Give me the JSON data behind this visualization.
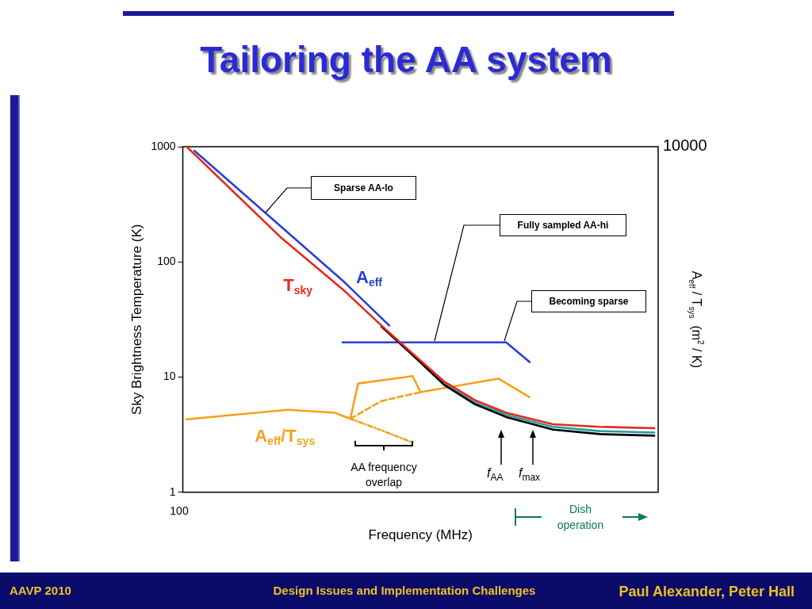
{
  "chart_data": {
    "type": "line",
    "title": "Tailoring the AA system",
    "xlabel": "Frequency (MHz)",
    "ylabel": "Sky Brightness Temperature (K)",
    "y2label": "A$_{eff}$ / T$_{sys}$  (m$^{2}$ / K)",
    "log": "y",
    "grid": false,
    "legend": false,
    "marker": "none",
    "categories": [
      null,
      null,
      null,
      null,
      null,
      null,
      null,
      null,
      null,
      null,
      null,
      null,
      null,
      null,
      null,
      null,
      null,
      null,
      null,
      null,
      null,
      null,
      null,
      null,
      null,
      null,
      null,
      null,
      null,
      null,
      null,
      null,
      null,
      null,
      null,
      null,
      null,
      null,
      null,
      null,
      null,
      null,
      null,
      null,
      null,
      null,
      null,
      null,
      null,
      null,
      null,
      null,
      null,
      null,
      null,
      null,
      null,
      null,
      null,
      null,
      null
    ],
    "ylim": [
      1,
      1000
    ],
    "yticks": [
      1,
      10,
      100,
      1000
    ],
    "series": [
      {
        "name": "T$_{sky}$",
        "color": "#e8281e",
        "values": [
          1000,
          null,
          null,
          null,
          null,
          null,
          null,
          null,
          null,
          null,
          null,
          null,
          165,
          null,
          null,
          null,
          null,
          null,
          null,
          null,
          58,
          null,
          null,
          null,
          null,
          28,
          null,
          null,
          null,
          16,
          null,
          null,
          null,
          9.2,
          null,
          null,
          null,
          6.3,
          null,
          null,
          null,
          4.9,
          null,
          null,
          null,
          null,
          null,
          3.9,
          null,
          null,
          null,
          null,
          null,
          3.7,
          null,
          null,
          null,
          null,
          null,
          null,
          3.6
        ]
      },
      {
        "color": "#000000",
        "values": [
          null,
          null,
          null,
          null,
          null,
          null,
          null,
          null,
          null,
          null,
          null,
          null,
          null,
          null,
          null,
          null,
          null,
          null,
          null,
          null,
          null,
          null,
          null,
          null,
          null,
          27.5,
          null,
          null,
          null,
          15.5,
          null,
          null,
          null,
          8.6,
          null,
          null,
          null,
          5.8,
          null,
          null,
          null,
          4.5,
          null,
          null,
          null,
          null,
          null,
          3.5,
          null,
          null,
          null,
          null,
          null,
          3.2,
          null,
          null,
          null,
          null,
          null,
          null,
          3.1
        ]
      },
      {
        "color": "#20a0a0",
        "values": [
          null,
          null,
          null,
          null,
          null,
          null,
          null,
          null,
          null,
          null,
          null,
          null,
          null,
          null,
          null,
          null,
          null,
          null,
          null,
          null,
          null,
          null,
          null,
          null,
          null,
          27.5,
          null,
          null,
          null,
          15.6,
          null,
          null,
          null,
          8.8,
          null,
          null,
          null,
          6.0,
          null,
          null,
          null,
          4.7,
          null,
          null,
          null,
          null,
          null,
          3.7,
          null,
          null,
          null,
          null,
          null,
          3.4,
          null,
          null,
          null,
          null,
          null,
          null,
          3.3
        ]
      },
      {
        "name": "A$_{eff}$",
        "color": "#2b3fd0",
        "values": [
          null,
          921,
          null,
          null,
          null,
          null,
          null,
          null,
          null,
          null,
          null,
          null,
          null,
          null,
          null,
          null,
          null,
          null,
          null,
          null,
          69,
          null,
          null,
          null,
          null,
          null,
          28,
          null,
          null,
          null,
          null,
          null,
          null,
          null,
          null,
          null,
          null,
          null,
          null,
          null,
          null,
          null,
          null,
          null,
          null,
          null,
          null,
          null,
          null,
          null,
          null,
          null,
          null,
          null,
          null,
          null,
          null,
          null,
          null,
          null,
          null
        ]
      },
      {
        "color": "#2b3fd0",
        "values": [
          null,
          null,
          null,
          null,
          null,
          null,
          null,
          null,
          null,
          null,
          null,
          null,
          null,
          null,
          null,
          null,
          null,
          null,
          null,
          null,
          20,
          null,
          null,
          null,
          null,
          null,
          null,
          null,
          null,
          null,
          null,
          null,
          null,
          null,
          null,
          null,
          null,
          null,
          null,
          null,
          null,
          20,
          null,
          null,
          13.5,
          null,
          null,
          null,
          null,
          null,
          null,
          null,
          null,
          null,
          null,
          null,
          null,
          null,
          null,
          null,
          null
        ]
      },
      {
        "name": "A$_{eff}$/T$_{sys}$",
        "color": "#f5a01a",
        "values": [
          4.3,
          null,
          null,
          null,
          null,
          null,
          null,
          null,
          null,
          null,
          null,
          null,
          null,
          5.2,
          null,
          null,
          null,
          null,
          null,
          4.9,
          null,
          4.35,
          8.8,
          null,
          null,
          null,
          null,
          null,
          null,
          10.2,
          7.4,
          null,
          null,
          null,
          null,
          null,
          null,
          null,
          null,
          null,
          9.7,
          null,
          null,
          null,
          6.7,
          null,
          null,
          null,
          null,
          null,
          null,
          null,
          null,
          null,
          null,
          null,
          null,
          null,
          null,
          null,
          null
        ]
      },
      {
        "color": "#f5a01a",
        "line_style": "dashed",
        "values": [
          null,
          null,
          null,
          null,
          null,
          null,
          null,
          null,
          null,
          null,
          null,
          null,
          null,
          null,
          null,
          null,
          null,
          null,
          null,
          null,
          null,
          4.35,
          null,
          null,
          null,
          6.2,
          null,
          null,
          null,
          null,
          7.4,
          null,
          null,
          null,
          null,
          null,
          null,
          null,
          null,
          null,
          null,
          null,
          null,
          null,
          null,
          null,
          null,
          null,
          null,
          null,
          null,
          null,
          null,
          null,
          null,
          null,
          null,
          null,
          null,
          null,
          null
        ]
      },
      {
        "color": "#f5a01a",
        "line_style": "dotted",
        "values": [
          null,
          null,
          null,
          null,
          null,
          null,
          null,
          null,
          null,
          null,
          null,
          null,
          null,
          null,
          null,
          null,
          null,
          null,
          null,
          null,
          null,
          4.35,
          null,
          null,
          null,
          3.45,
          null,
          null,
          null,
          2.7,
          null,
          null,
          null,
          null,
          null,
          null,
          null,
          null,
          null,
          null,
          null,
          null,
          null,
          null,
          null,
          null,
          null,
          null,
          null,
          null,
          null,
          null,
          null,
          null,
          null,
          null,
          null,
          null,
          null,
          null,
          null
        ]
      }
    ],
    "annotations": [
      "Sparse AA-lo",
      "Fully sampled AA-hi",
      "Becoming sparse",
      "AA frequency overlap",
      "f$_{AA}$",
      "f$_{max}$",
      "Dish operation",
      "100",
      "10000",
      "AAVP 2010",
      "Design Issues and Implementation Challenges",
      "Paul Alexander, Peter Hall"
    ]
  }
}
